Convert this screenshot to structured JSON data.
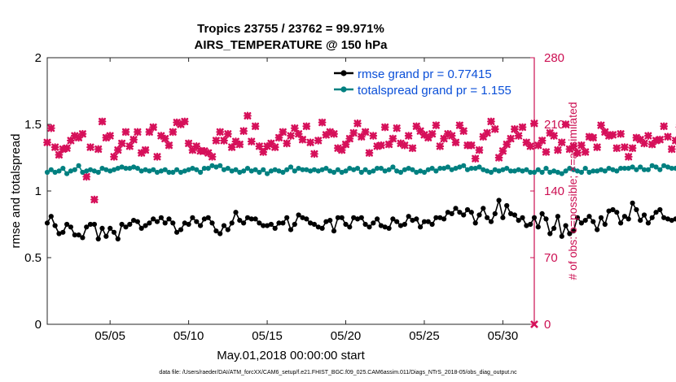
{
  "chart_data": {
    "type": "line",
    "title_line1": "Tropics 23755 / 23762 = 99.971%",
    "title_line2": "AIRS_TEMPERATURE @ 150 hPa",
    "xlabel": "May.01,2018 00:00:00 start",
    "ylabel_left": "rmse and totalspread",
    "ylabel_right": "# of obs: o=possible; ×=assimilated",
    "footer": "data file: /Users/raeder/DAI/ATM_forcXX/CAM6_setup/f.e21.FHIST_BGC.f09_025.CAM6assim.011/Diags_NTrS_2018-05/obs_diag_output.nc",
    "x_range_days": [
      1,
      32
    ],
    "x_tick_days": [
      5,
      10,
      15,
      20,
      25,
      30
    ],
    "x_tick_labels": [
      "05/05",
      "05/10",
      "05/15",
      "05/20",
      "05/25",
      "05/30"
    ],
    "ylim_left": [
      0,
      2
    ],
    "y_ticks_left": [
      0,
      0.5,
      1,
      1.5,
      2
    ],
    "y_tick_labels_left": [
      "0",
      "0.5",
      "1",
      "1.5",
      "2"
    ],
    "ylim_right": [
      0,
      280
    ],
    "y_ticks_right": [
      0,
      70,
      140,
      210,
      280
    ],
    "y_tick_labels_right": [
      "0",
      "70",
      "140",
      "210",
      "280"
    ],
    "legend": [
      "rmse grand pr = 0.77415",
      "totalspread grand pr = 1.155"
    ],
    "colors": {
      "rmse": "#000000",
      "spread": "#008080",
      "obs": "#d6105a",
      "right_axis": "#cc0f52",
      "legend_text": "#0a4fd8"
    },
    "series": [
      {
        "name": "rmse",
        "axis": "left",
        "x_start": 1.0,
        "dx": 0.25,
        "values": [
          0.76,
          0.81,
          0.74,
          0.68,
          0.69,
          0.75,
          0.73,
          0.67,
          0.67,
          0.65,
          0.73,
          0.75,
          0.75,
          0.64,
          0.72,
          0.66,
          0.72,
          0.69,
          0.64,
          0.75,
          0.73,
          0.75,
          0.78,
          0.77,
          0.72,
          0.74,
          0.76,
          0.79,
          0.77,
          0.8,
          0.76,
          0.79,
          0.76,
          0.69,
          0.71,
          0.76,
          0.75,
          0.8,
          0.77,
          0.74,
          0.79,
          0.8,
          0.76,
          0.7,
          0.68,
          0.74,
          0.71,
          0.76,
          0.84,
          0.78,
          0.76,
          0.8,
          0.79,
          0.79,
          0.76,
          0.74,
          0.74,
          0.75,
          0.72,
          0.76,
          0.76,
          0.8,
          0.71,
          0.75,
          0.82,
          0.8,
          0.79,
          0.76,
          0.75,
          0.73,
          0.72,
          0.77,
          0.78,
          0.7,
          0.8,
          0.8,
          0.75,
          0.73,
          0.8,
          0.79,
          0.8,
          0.75,
          0.73,
          0.76,
          0.79,
          0.74,
          0.73,
          0.72,
          0.79,
          0.77,
          0.74,
          0.75,
          0.81,
          0.78,
          0.79,
          0.73,
          0.77,
          0.77,
          0.75,
          0.8,
          0.8,
          0.79,
          0.84,
          0.83,
          0.87,
          0.84,
          0.82,
          0.86,
          0.84,
          0.76,
          0.82,
          0.87,
          0.8,
          0.77,
          0.83,
          0.93,
          0.8,
          0.89,
          0.83,
          0.82,
          0.78,
          0.8,
          0.74,
          0.75,
          0.8,
          0.73,
          0.83,
          0.79,
          0.68,
          0.72,
          0.81,
          0.66,
          0.74,
          0.68,
          0.7,
          0.8,
          0.76,
          0.78,
          0.81,
          0.77,
          0.71,
          0.8,
          0.75,
          0.85,
          0.86,
          0.84,
          0.76,
          0.81,
          0.79,
          0.91,
          0.86,
          0.78,
          0.82,
          0.76,
          0.8,
          0.84,
          0.86,
          0.8,
          0.79,
          0.78,
          0.79,
          0.78,
          0.78,
          0.79,
          0.79,
          0.77,
          0.79,
          0.78,
          0.79
        ]
      },
      {
        "name": "totalspread",
        "axis": "left",
        "x_start": 1.0,
        "dx": 0.25,
        "values": [
          1.14,
          1.16,
          1.14,
          1.15,
          1.17,
          1.13,
          1.15,
          1.16,
          1.19,
          1.14,
          1.15,
          1.16,
          1.15,
          1.14,
          1.17,
          1.16,
          1.15,
          1.16,
          1.17,
          1.18,
          1.17,
          1.17,
          1.18,
          1.17,
          1.15,
          1.16,
          1.15,
          1.16,
          1.14,
          1.15,
          1.16,
          1.14,
          1.14,
          1.16,
          1.14,
          1.15,
          1.16,
          1.17,
          1.16,
          1.14,
          1.17,
          1.17,
          1.19,
          1.18,
          1.19,
          1.16,
          1.17,
          1.15,
          1.16,
          1.14,
          1.15,
          1.17,
          1.15,
          1.16,
          1.14,
          1.16,
          1.13,
          1.15,
          1.16,
          1.15,
          1.14,
          1.16,
          1.18,
          1.15,
          1.17,
          1.16,
          1.16,
          1.15,
          1.16,
          1.15,
          1.16,
          1.17,
          1.15,
          1.14,
          1.16,
          1.14,
          1.15,
          1.17,
          1.16,
          1.17,
          1.14,
          1.16,
          1.14,
          1.15,
          1.17,
          1.17,
          1.15,
          1.16,
          1.18,
          1.15,
          1.14,
          1.16,
          1.17,
          1.16,
          1.14,
          1.15,
          1.14,
          1.16,
          1.17,
          1.15,
          1.17,
          1.17,
          1.18,
          1.16,
          1.17,
          1.18,
          1.19,
          1.16,
          1.17,
          1.17,
          1.18,
          1.16,
          1.15,
          1.14,
          1.16,
          1.15,
          1.16,
          1.17,
          1.15,
          1.15,
          1.16,
          1.15,
          1.16,
          1.14,
          1.14,
          1.16,
          1.14,
          1.17,
          1.14,
          1.15,
          1.14,
          1.13,
          1.15,
          1.17,
          1.16,
          1.15,
          1.14,
          1.17,
          1.14,
          1.15,
          1.15,
          1.16,
          1.15,
          1.17,
          1.16,
          1.15,
          1.17,
          1.17,
          1.17,
          1.18,
          1.16,
          1.18,
          1.16,
          1.16,
          1.19,
          1.18,
          1.16,
          1.19,
          1.18,
          1.17,
          1.17,
          1.17,
          1.17,
          1.16,
          1.18,
          1.16,
          1.16
        ]
      },
      {
        "name": "obs_assimilated",
        "axis": "right",
        "x_start": 1.0,
        "dx": 0.25,
        "values": [
          191,
          206,
          186,
          178,
          184,
          185,
          193,
          198,
          196,
          200,
          155,
          186,
          131,
          184,
          213,
          196,
          198,
          176,
          183,
          190,
          202,
          187,
          194,
          202,
          180,
          183,
          202,
          207,
          176,
          198,
          195,
          188,
          202,
          212,
          210,
          213,
          190,
          183,
          187,
          182,
          182,
          180,
          176,
          193,
          202,
          193,
          200,
          186,
          192,
          189,
          203,
          219,
          192,
          208,
          187,
          181,
          187,
          190,
          186,
          196,
          202,
          190,
          198,
          206,
          200,
          194,
          208,
          191,
          179,
          193,
          212,
          199,
          202,
          200,
          185,
          183,
          189,
          195,
          201,
          211,
          197,
          202,
          180,
          198,
          187,
          188,
          207,
          189,
          195,
          206,
          190,
          188,
          198,
          185,
          208,
          203,
          199,
          196,
          200,
          209,
          187,
          195,
          200,
          198,
          191,
          209,
          203,
          188,
          188,
          174,
          183,
          197,
          201,
          213,
          205,
          175,
          182,
          189,
          195,
          205,
          198,
          207,
          191,
          187,
          211,
          188,
          193,
          181,
          201,
          198,
          183,
          191,
          210,
          184,
          187,
          180,
          188,
          181,
          197,
          196,
          186,
          209,
          202,
          198,
          199,
          185,
          200,
          186,
          176,
          185,
          196,
          194,
          190,
          198,
          189,
          193,
          194,
          208,
          197,
          184,
          193,
          207,
          183,
          193,
          209,
          196,
          193,
          211,
          179,
          181,
          215,
          186,
          183,
          187,
          190,
          178,
          185,
          214,
          188,
          199,
          183
        ]
      }
    ]
  }
}
